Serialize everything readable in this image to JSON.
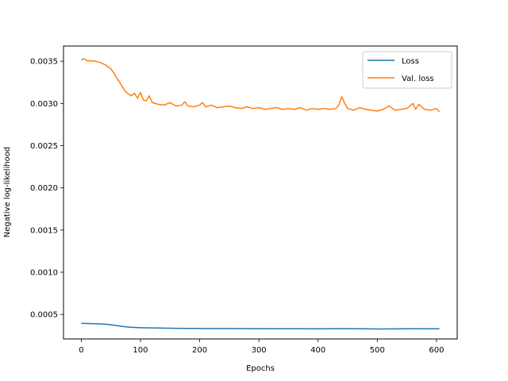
{
  "chart_data": {
    "type": "line",
    "xlabel": "Epochs",
    "ylabel": "Negative log-likelihood",
    "xlim": [
      -30,
      635
    ],
    "ylim": [
      0.00021,
      0.00368
    ],
    "xticks": [
      0,
      100,
      200,
      300,
      400,
      500,
      600
    ],
    "xtick_labels": [
      "0",
      "100",
      "200",
      "300",
      "400",
      "500",
      "600"
    ],
    "yticks": [
      0.0005,
      0.001,
      0.0015,
      0.002,
      0.0025,
      0.003,
      0.0035
    ],
    "ytick_labels": [
      "0.0005",
      "0.0010",
      "0.0015",
      "0.0020",
      "0.0025",
      "0.0030",
      "0.0035"
    ],
    "grid": false,
    "legend_position": "top-right",
    "series": [
      {
        "name": "Loss",
        "color": "#1f77b4",
        "x": [
          0,
          10,
          20,
          30,
          40,
          50,
          60,
          70,
          80,
          90,
          100,
          120,
          140,
          160,
          180,
          200,
          240,
          280,
          320,
          360,
          400,
          440,
          480,
          500,
          520,
          560,
          605
        ],
        "y": [
          0.000395,
          0.000393,
          0.000391,
          0.000389,
          0.000385,
          0.000378,
          0.000368,
          0.000358,
          0.00035,
          0.000346,
          0.000343,
          0.00034,
          0.000338,
          0.000336,
          0.000335,
          0.000334,
          0.000333,
          0.000332,
          0.000331,
          0.000331,
          0.00033,
          0.000332,
          0.00033,
          0.000328,
          0.000329,
          0.000331,
          0.00033
        ]
      },
      {
        "name": "Val. loss",
        "color": "#ff7f0e",
        "x": [
          0,
          5,
          10,
          20,
          30,
          40,
          50,
          55,
          60,
          65,
          70,
          75,
          80,
          85,
          90,
          95,
          100,
          105,
          110,
          115,
          120,
          130,
          140,
          150,
          160,
          170,
          175,
          180,
          190,
          200,
          205,
          210,
          220,
          230,
          240,
          250,
          260,
          270,
          280,
          290,
          300,
          310,
          320,
          330,
          340,
          350,
          360,
          370,
          380,
          390,
          400,
          410,
          420,
          430,
          435,
          440,
          445,
          450,
          460,
          470,
          480,
          490,
          500,
          510,
          520,
          530,
          540,
          550,
          560,
          565,
          570,
          580,
          590,
          600,
          605
        ],
        "y": [
          0.003515,
          0.00353,
          0.003505,
          0.003505,
          0.00349,
          0.00346,
          0.00341,
          0.00336,
          0.0033,
          0.00325,
          0.00319,
          0.00314,
          0.00311,
          0.00309,
          0.00312,
          0.00306,
          0.00313,
          0.00304,
          0.00303,
          0.00309,
          0.00301,
          0.00299,
          0.00298,
          0.00301,
          0.00297,
          0.00298,
          0.00302,
          0.00297,
          0.00296,
          0.00298,
          0.00301,
          0.00296,
          0.00298,
          0.00295,
          0.00296,
          0.00297,
          0.00295,
          0.00294,
          0.00296,
          0.00294,
          0.00295,
          0.00293,
          0.00294,
          0.00295,
          0.00293,
          0.00294,
          0.00293,
          0.00295,
          0.00292,
          0.00294,
          0.00293,
          0.00294,
          0.00293,
          0.00294,
          0.00298,
          0.00308,
          0.003,
          0.00294,
          0.00292,
          0.00295,
          0.00293,
          0.00292,
          0.00291,
          0.00293,
          0.00297,
          0.00292,
          0.00293,
          0.00294,
          0.003,
          0.00293,
          0.00299,
          0.00293,
          0.00292,
          0.00294,
          0.0029
        ]
      }
    ]
  }
}
